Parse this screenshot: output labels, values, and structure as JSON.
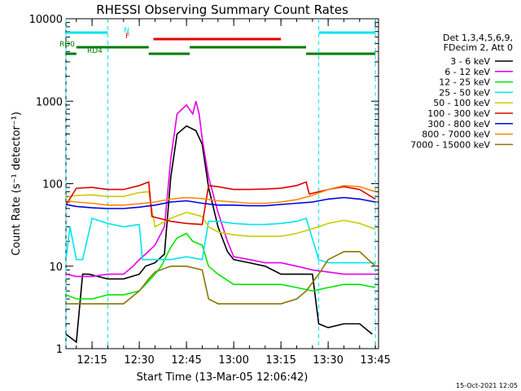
{
  "chart_data": {
    "type": "line",
    "title": "RHESSI Observing Summary Count Rates",
    "xlabel": "Start Time (13-Mar-05 12:06:42)",
    "ylabel": "Count Rate (s⁻¹ detector⁻¹)",
    "footer": "15-Oct-2021 12:05",
    "xlim": [
      "12:06:42",
      "13:46:00"
    ],
    "ylim": [
      1,
      10000
    ],
    "yscale": "log",
    "grid": false,
    "legend_placement": "right",
    "legend_header": [
      "Det 1,3,4,5,6,9,",
      "FDecim 2, Att 0"
    ],
    "x_ticks": [
      "12:15",
      "12:30",
      "12:45",
      "13:00",
      "13:15",
      "13:30",
      "13:45"
    ],
    "y_ticks": [
      "1",
      "10",
      "100",
      "1000",
      "10000"
    ],
    "flags": [
      {
        "label": "N",
        "color": "#00e5ee",
        "spans": [
          [
            "12:06:42",
            "12:20:00"
          ],
          [
            "13:27:00",
            "13:45:00"
          ]
        ]
      },
      {
        "label": "F",
        "color": "#e00000",
        "spans": [
          [
            "12:34:30",
            "13:15:00"
          ]
        ]
      },
      {
        "label": "RD0",
        "color": "#007a00",
        "spans": [
          [
            "12:10:00",
            "12:33:00"
          ],
          [
            "12:46:00",
            "13:23:00"
          ]
        ]
      },
      {
        "label": "RD4",
        "color": "#007a00",
        "spans": [
          [
            "12:06:42",
            "12:10:00"
          ],
          [
            "12:33:00",
            "12:46:00"
          ],
          [
            "13:23:00",
            "13:45:00"
          ]
        ]
      }
    ],
    "night_markers": [
      "12:06:42",
      "12:20:00",
      "13:27:00",
      "13:45:00"
    ],
    "series": [
      {
        "name": "3 - 6 keV",
        "color": "#000000",
        "x": [
          "12:06:42",
          "12:10:00",
          "12:12:00",
          "12:14:00",
          "12:20:00",
          "12:25:00",
          "12:30:00",
          "12:32:00",
          "12:35:00",
          "12:38:00",
          "12:40:00",
          "12:42:00",
          "12:45:00",
          "12:48:00",
          "12:50:00",
          "12:52:00",
          "12:55:00",
          "12:58:00",
          "13:00:00",
          "13:05:00",
          "13:10:00",
          "13:15:00",
          "13:20:00",
          "13:25:00",
          "13:27:00",
          "13:30:00",
          "13:35:00",
          "13:40:00",
          "13:44:00"
        ],
        "y": [
          1.5,
          1.2,
          8,
          8,
          7,
          7,
          8,
          10,
          11,
          14,
          120,
          400,
          500,
          440,
          300,
          90,
          30,
          15,
          12,
          11,
          10,
          8,
          8,
          8,
          2,
          1.8,
          2,
          2,
          1.5
        ]
      },
      {
        "name": "6 - 12 keV",
        "color": "#e600e6",
        "x": [
          "12:06:42",
          "12:10:00",
          "12:15:00",
          "12:20:00",
          "12:25:00",
          "12:28:00",
          "12:30:00",
          "12:32:00",
          "12:35:00",
          "12:38:00",
          "12:40:00",
          "12:42:00",
          "12:45:00",
          "12:47:00",
          "12:48:00",
          "12:49:00",
          "12:50:00",
          "12:52:00",
          "12:55:00",
          "12:58:00",
          "13:00:00",
          "13:05:00",
          "13:10:00",
          "13:15:00",
          "13:20:00",
          "13:25:00",
          "13:30:00",
          "13:35:00",
          "13:40:00",
          "13:45:00"
        ],
        "y": [
          8,
          7.5,
          7.5,
          8,
          8,
          10,
          12,
          14,
          18,
          30,
          200,
          700,
          900,
          700,
          1000,
          700,
          350,
          120,
          45,
          20,
          13,
          12,
          11,
          11,
          10,
          9,
          8.5,
          8,
          8,
          8
        ]
      },
      {
        "name": "12 - 25 keV",
        "color": "#00e600",
        "x": [
          "12:06:42",
          "12:10:00",
          "12:15:00",
          "12:20:00",
          "12:25:00",
          "12:30:00",
          "12:32:00",
          "12:35:00",
          "12:37:00",
          "12:40:00",
          "12:42:00",
          "12:45:00",
          "12:47:00",
          "12:50:00",
          "12:52:00",
          "12:55:00",
          "13:00:00",
          "13:05:00",
          "13:10:00",
          "13:15:00",
          "13:20:00",
          "13:25:00",
          "13:30:00",
          "13:35:00",
          "13:40:00",
          "13:45:00"
        ],
        "y": [
          4.5,
          4,
          4,
          4.5,
          4.5,
          5,
          6,
          8,
          10,
          17,
          22,
          25,
          20,
          18,
          10,
          8,
          6,
          6,
          6,
          6,
          5.5,
          5,
          5.5,
          6,
          6,
          5.5
        ]
      },
      {
        "name": "25 - 50 keV",
        "color": "#00e5ee",
        "x": [
          "12:06:42",
          "12:08:00",
          "12:10:00",
          "12:12:00",
          "12:15:00",
          "12:20:00",
          "12:25:00",
          "12:30:00",
          "12:31:00",
          "12:35:00",
          "12:40:00",
          "12:45:00",
          "12:50:00",
          "12:52:00",
          "12:55:00",
          "13:00:00",
          "13:05:00",
          "13:10:00",
          "13:15:00",
          "13:20:00",
          "13:23:00",
          "13:27:00",
          "13:30:00",
          "13:35:00",
          "13:40:00",
          "13:45:00"
        ],
        "y": [
          12,
          30,
          12,
          12,
          38,
          33,
          30,
          32,
          12,
          12,
          12,
          13,
          12,
          35,
          35,
          33,
          32,
          32,
          33,
          35,
          38,
          12,
          11,
          11,
          11,
          11
        ]
      },
      {
        "name": "50 - 100 keV",
        "color": "#cccc00",
        "x": [
          "12:06:42",
          "12:10:00",
          "12:15:00",
          "12:20:00",
          "12:25:00",
          "12:30:00",
          "12:33:00",
          "12:35:00",
          "12:40:00",
          "12:45:00",
          "12:50:00",
          "12:52:00",
          "12:55:00",
          "13:00:00",
          "13:05:00",
          "13:10:00",
          "13:15:00",
          "13:20:00",
          "13:23:00",
          "13:27:00",
          "13:30:00",
          "13:35:00",
          "13:40:00",
          "13:45:00"
        ],
        "y": [
          68,
          72,
          73,
          70,
          70,
          78,
          80,
          30,
          38,
          45,
          40,
          30,
          26,
          24,
          23,
          23,
          23,
          25,
          27,
          30,
          33,
          36,
          33,
          28
        ]
      },
      {
        "name": "100 - 300 keV",
        "color": "#e00000",
        "x": [
          "12:06:42",
          "12:10:00",
          "12:15:00",
          "12:20:00",
          "12:25:00",
          "12:30:00",
          "12:33:00",
          "12:34:00",
          "12:40:00",
          "12:45:00",
          "12:50:00",
          "12:52:00",
          "12:55:00",
          "13:00:00",
          "13:05:00",
          "13:10:00",
          "13:15:00",
          "13:20:00",
          "13:23:00",
          "13:24:00",
          "13:30:00",
          "13:35:00",
          "13:40:00",
          "13:45:00"
        ],
        "y": [
          55,
          88,
          90,
          85,
          85,
          95,
          105,
          40,
          35,
          33,
          32,
          95,
          92,
          85,
          85,
          86,
          88,
          95,
          105,
          75,
          85,
          92,
          85,
          65
        ]
      },
      {
        "name": "300 - 800 keV",
        "color": "#0000e6",
        "x": [
          "12:06:42",
          "12:10:00",
          "12:15:00",
          "12:20:00",
          "12:25:00",
          "12:30:00",
          "12:35:00",
          "12:40:00",
          "12:45:00",
          "12:50:00",
          "12:55:00",
          "13:00:00",
          "13:05:00",
          "13:10:00",
          "13:15:00",
          "13:20:00",
          "13:25:00",
          "13:30:00",
          "13:35:00",
          "13:40:00",
          "13:45:00"
        ],
        "y": [
          56,
          53,
          51,
          50,
          50,
          52,
          55,
          60,
          62,
          58,
          55,
          55,
          54,
          54,
          56,
          58,
          60,
          65,
          68,
          65,
          60
        ]
      },
      {
        "name": "800 - 7000 keV",
        "color": "#ff8800",
        "x": [
          "12:06:42",
          "12:10:00",
          "12:15:00",
          "12:20:00",
          "12:25:00",
          "12:30:00",
          "12:35:00",
          "12:40:00",
          "12:45:00",
          "12:50:00",
          "12:55:00",
          "13:00:00",
          "13:05:00",
          "13:10:00",
          "13:15:00",
          "13:20:00",
          "13:25:00",
          "13:30:00",
          "13:35:00",
          "13:40:00",
          "13:45:00"
        ],
        "y": [
          62,
          60,
          58,
          55,
          55,
          57,
          60,
          65,
          68,
          66,
          62,
          60,
          58,
          58,
          60,
          64,
          72,
          85,
          95,
          92,
          80
        ]
      },
      {
        "name": "7000 - 15000 keV",
        "color": "#8b7500",
        "x": [
          "12:06:42",
          "12:10:00",
          "12:15:00",
          "12:20:00",
          "12:25:00",
          "12:30:00",
          "12:33:00",
          "12:35:00",
          "12:40:00",
          "12:45:00",
          "12:50:00",
          "12:52:00",
          "12:55:00",
          "13:00:00",
          "13:05:00",
          "13:10:00",
          "13:15:00",
          "13:20:00",
          "13:23:00",
          "13:27:00",
          "13:30:00",
          "13:35:00",
          "13:40:00",
          "13:45:00"
        ],
        "y": [
          3.5,
          3.5,
          3.5,
          3.5,
          3.5,
          5,
          7,
          8.5,
          10,
          10,
          9,
          4,
          3.5,
          3.5,
          3.5,
          3.5,
          3.5,
          4,
          5,
          8,
          12,
          15,
          15,
          10
        ]
      }
    ]
  }
}
